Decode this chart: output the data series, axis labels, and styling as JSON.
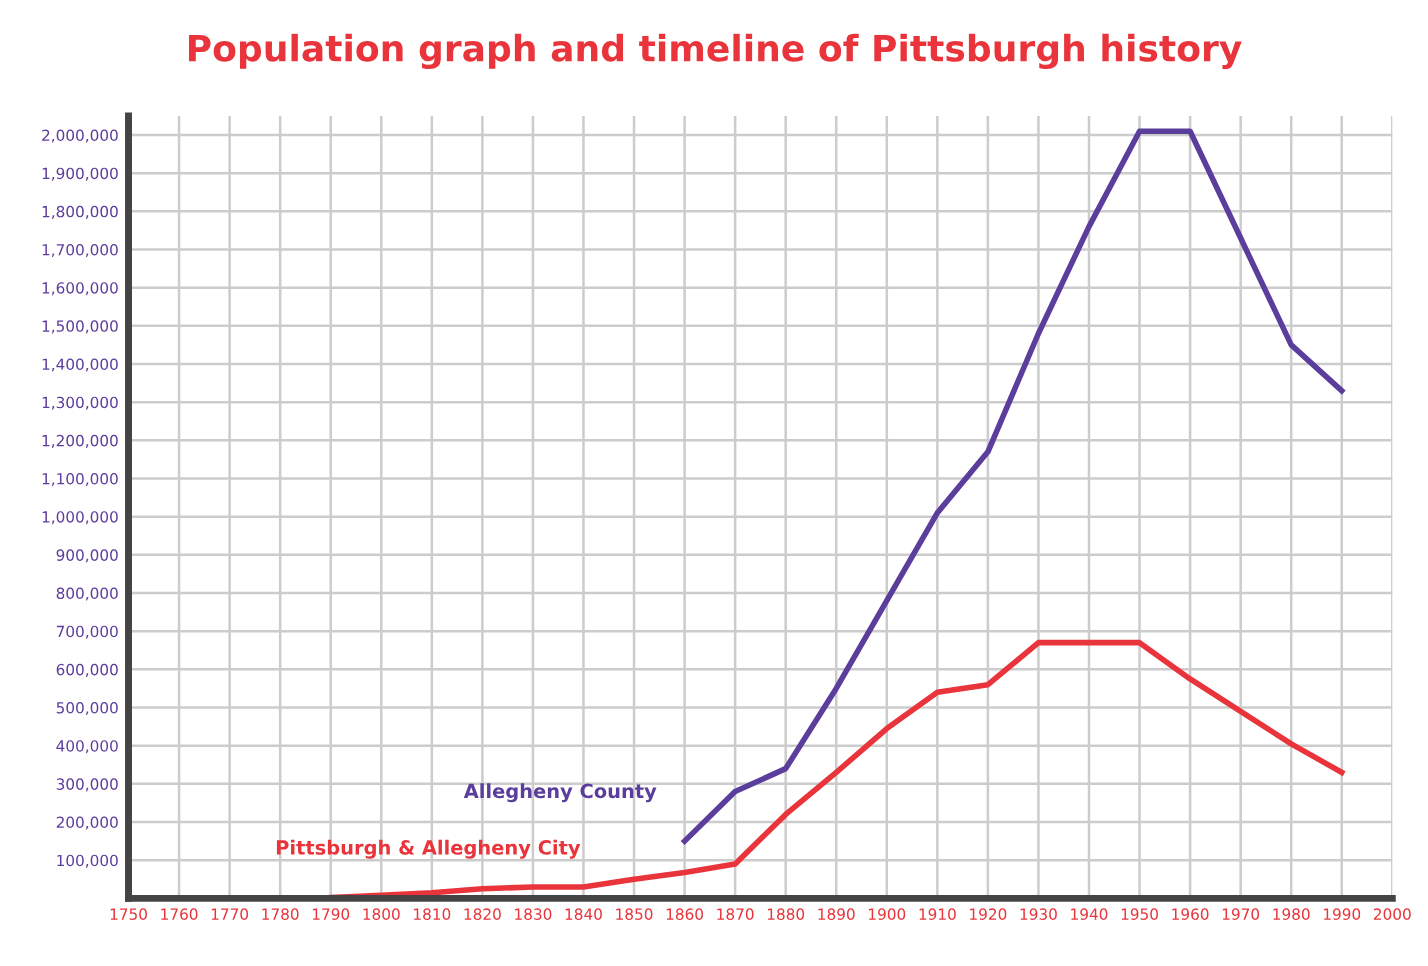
{
  "chart_data": {
    "type": "line",
    "title": "Population graph and timeline of Pittsburgh history",
    "xlim": [
      1750,
      2000
    ],
    "xticks": [
      1750,
      1760,
      1770,
      1780,
      1790,
      1800,
      1810,
      1820,
      1830,
      1840,
      1850,
      1860,
      1870,
      1880,
      1890,
      1900,
      1910,
      1920,
      1930,
      1940,
      1950,
      1960,
      1970,
      1980,
      1990,
      2000
    ],
    "ylim": [
      0,
      2050000
    ],
    "yticks": [
      {
        "value": 100000,
        "label": "100,000"
      },
      {
        "value": 200000,
        "label": "200,000"
      },
      {
        "value": 300000,
        "label": "300,000"
      },
      {
        "value": 400000,
        "label": "400,000"
      },
      {
        "value": 500000,
        "label": "500,000"
      },
      {
        "value": 600000,
        "label": "600,000"
      },
      {
        "value": 700000,
        "label": "700,000"
      },
      {
        "value": 800000,
        "label": "800,000"
      },
      {
        "value": 900000,
        "label": "900,000"
      },
      {
        "value": 1000000,
        "label": "1,000,000"
      },
      {
        "value": 1100000,
        "label": "1,100,000"
      },
      {
        "value": 1200000,
        "label": "1,200,000"
      },
      {
        "value": 1300000,
        "label": "1,300,000"
      },
      {
        "value": 1400000,
        "label": "1,400,000"
      },
      {
        "value": 1500000,
        "label": "1,500,000"
      },
      {
        "value": 1600000,
        "label": "1,600,000"
      },
      {
        "value": 1700000,
        "label": "1,700,000"
      },
      {
        "value": 1800000,
        "label": "1,800,000"
      },
      {
        "value": 1900000,
        "label": "1,900,000"
      },
      {
        "value": 2000000,
        "label": "2,000,000"
      }
    ],
    "grid": true,
    "marker": "none",
    "line_style": "solid",
    "series": [
      {
        "name": "Allegheny County",
        "color": "#5b3d9c",
        "x": [
          1860,
          1870,
          1880,
          1890,
          1900,
          1910,
          1920,
          1930,
          1940,
          1950,
          1960,
          1970,
          1980,
          1990
        ],
        "values": [
          150000,
          280000,
          340000,
          550000,
          780000,
          1010000,
          1170000,
          1480000,
          1760000,
          2010000,
          2010000,
          1730000,
          1450000,
          1330000
        ]
      },
      {
        "name": "Pittsburgh & Allegheny City",
        "color": "#e8343a",
        "x": [
          1790,
          1800,
          1810,
          1820,
          1830,
          1840,
          1850,
          1860,
          1870,
          1880,
          1890,
          1900,
          1910,
          1920,
          1930,
          1940,
          1950,
          1960,
          1970,
          1980,
          1990
        ],
        "values": [
          2000,
          8000,
          15000,
          25000,
          30000,
          30000,
          50000,
          68000,
          90000,
          220000,
          330000,
          445000,
          540000,
          560000,
          670000,
          670000,
          670000,
          575000,
          490000,
          405000,
          330000
        ]
      }
    ]
  }
}
